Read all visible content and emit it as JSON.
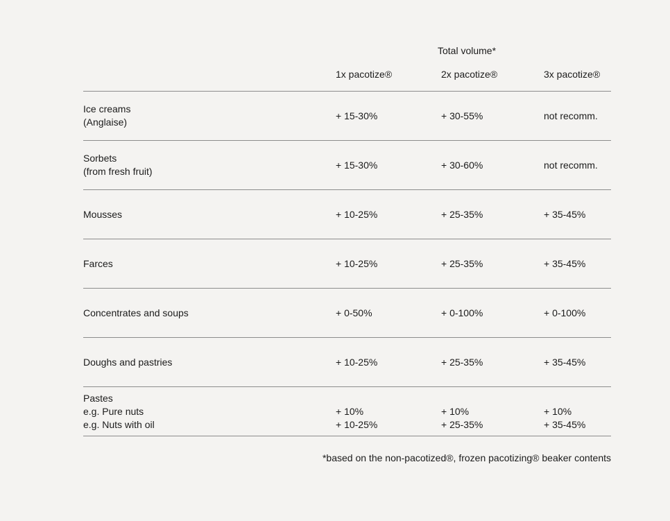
{
  "page": {
    "colors": {
      "background": "#f4f3f1",
      "text": "#1b1b1b",
      "rule": "#8c8c8c"
    }
  },
  "table": {
    "spanner": "Total volume*",
    "columns": [
      "1x pacotize®",
      "2x pacotize®",
      "3x pacotize®"
    ],
    "rows": [
      {
        "label": "Ice creams\n(Anglaise)",
        "values": [
          "+ 15-30%",
          "+ 30-55%",
          "not recomm."
        ]
      },
      {
        "label": "Sorbets\n(from fresh fruit)",
        "values": [
          "+ 15-30%",
          "+ 30-60%",
          "not recomm."
        ]
      },
      {
        "label": "Mousses",
        "values": [
          "+ 10-25%",
          "+ 25-35%",
          "+ 35-45%"
        ]
      },
      {
        "label": "Farces",
        "values": [
          "+ 10-25%",
          "+ 25-35%",
          "+ 35-45%"
        ]
      },
      {
        "label": "Concentrates and soups",
        "values": [
          "+ 0-50%",
          "+ 0-100%",
          "+ 0-100%"
        ]
      },
      {
        "label": "Doughs and pastries",
        "values": [
          "+ 10-25%",
          "+ 25-35%",
          "+ 35-45%"
        ]
      },
      {
        "label": "Pastes\ne.g. Pure nuts\ne.g. Nuts with oil",
        "values": [
          "+ 10%\n+ 10-25%",
          "+ 10%\n+ 25-35%",
          "+ 10%\n+ 35-45%"
        ]
      }
    ],
    "footnote": "*based on the non-pacotized®, frozen pacotizing® beaker contents"
  }
}
